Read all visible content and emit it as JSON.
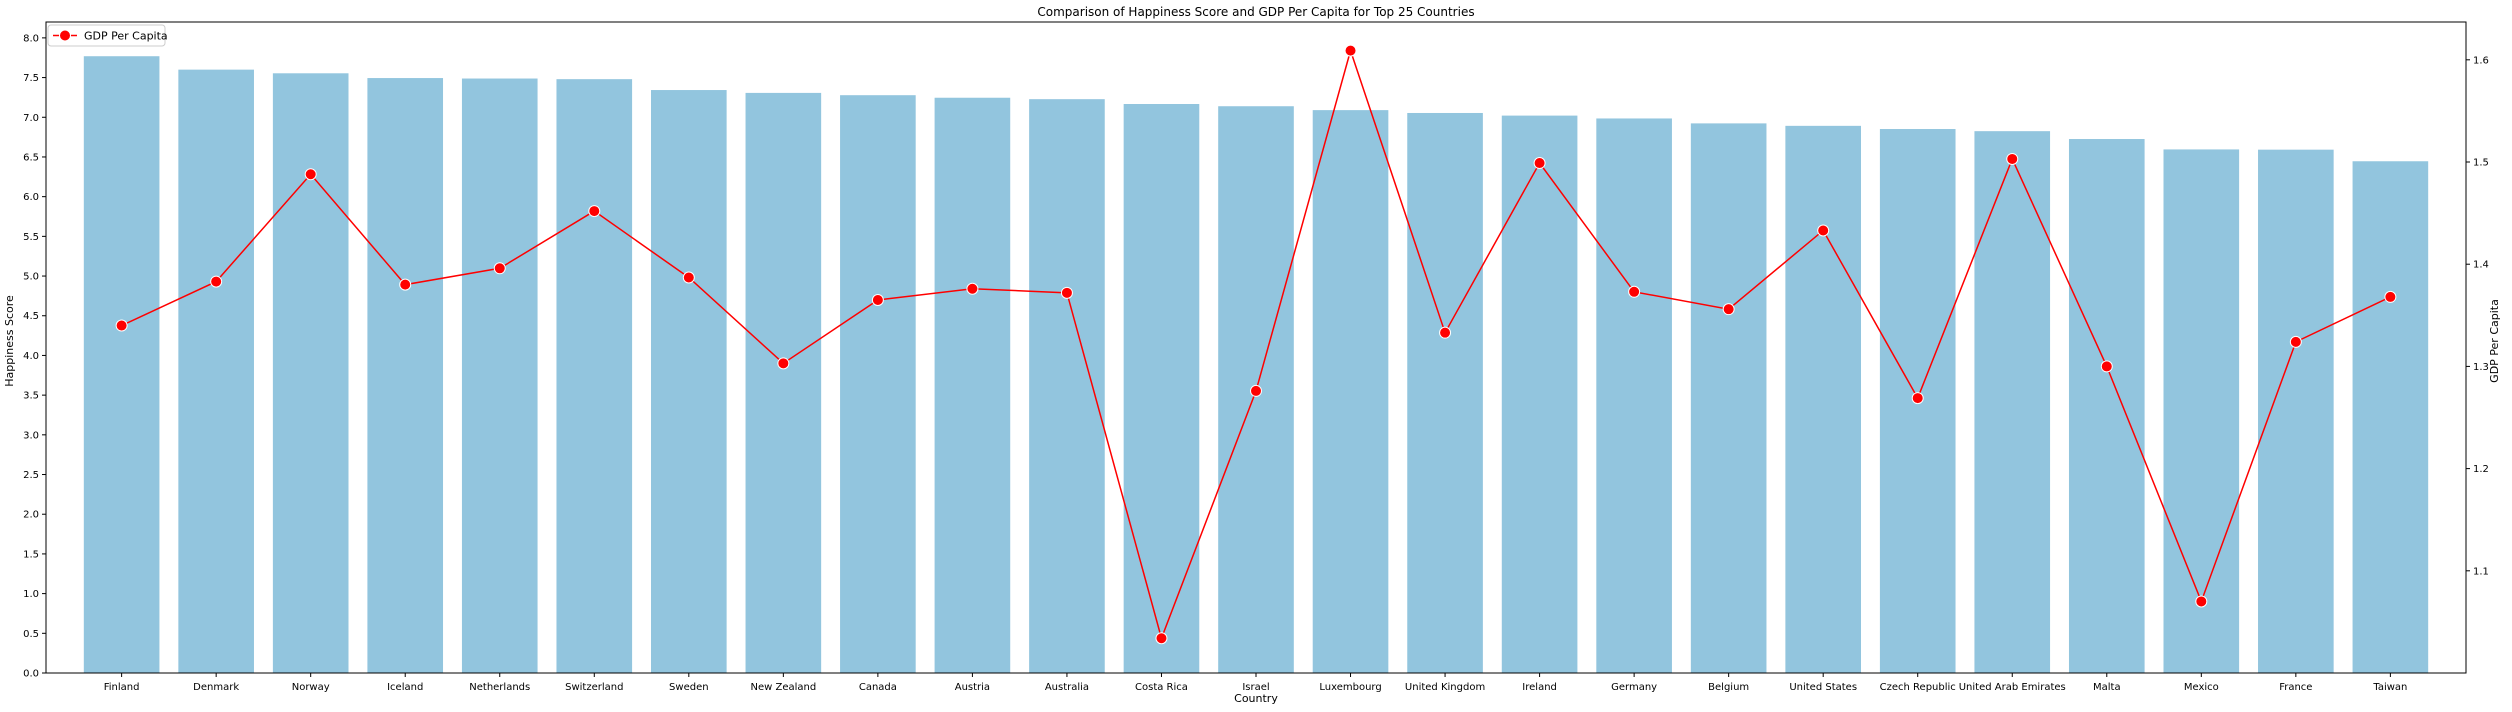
{
  "chart_data": {
    "type": "bar",
    "title": "Comparison of Happiness Score and GDP Per Capita for Top 25 Countries",
    "xlabel": "Country",
    "ylabel": "Happiness Score",
    "ylabel_right": "GDP Per Capita",
    "categories": [
      "Finland",
      "Denmark",
      "Norway",
      "Iceland",
      "Netherlands",
      "Switzerland",
      "Sweden",
      "New Zealand",
      "Canada",
      "Austria",
      "Australia",
      "Costa Rica",
      "Israel",
      "Luxembourg",
      "United Kingdom",
      "Ireland",
      "Germany",
      "Belgium",
      "United States",
      "Czech Republic",
      "United Arab Emirates",
      "Malta",
      "Mexico",
      "France",
      "Taiwan"
    ],
    "ylim": [
      0,
      8.2
    ],
    "yticks": [
      "0.0",
      "0.5",
      "1.0",
      "1.5",
      "2.0",
      "2.5",
      "3.0",
      "3.5",
      "4.0",
      "4.5",
      "5.0",
      "5.5",
      "6.0",
      "6.5",
      "7.0",
      "7.5",
      "8.0"
    ],
    "y2lim": [
      1.0,
      1.637
    ],
    "y2ticks": [
      "1.1",
      "1.2",
      "1.3",
      "1.4",
      "1.5",
      "1.6"
    ],
    "series": [
      {
        "name": "",
        "kind": "bar",
        "color": "#92c5de",
        "values": [
          7.769,
          7.6,
          7.554,
          7.494,
          7.488,
          7.48,
          7.343,
          7.307,
          7.278,
          7.246,
          7.228,
          7.167,
          7.139,
          7.09,
          7.054,
          7.021,
          6.985,
          6.923,
          6.892,
          6.852,
          6.825,
          6.726,
          6.595,
          6.592,
          6.446
        ]
      },
      {
        "name": "GDP Per Capita",
        "kind": "line",
        "axis": "right",
        "color": "#ff0000",
        "values": [
          1.34,
          1.383,
          1.488,
          1.38,
          1.396,
          1.452,
          1.387,
          1.303,
          1.365,
          1.376,
          1.372,
          1.034,
          1.276,
          1.609,
          1.333,
          1.499,
          1.373,
          1.356,
          1.433,
          1.269,
          1.503,
          1.3,
          1.07,
          1.324,
          1.368
        ]
      }
    ],
    "legend": {
      "position": "top-left",
      "label": "GDP Per Capita"
    },
    "grid": false
  }
}
